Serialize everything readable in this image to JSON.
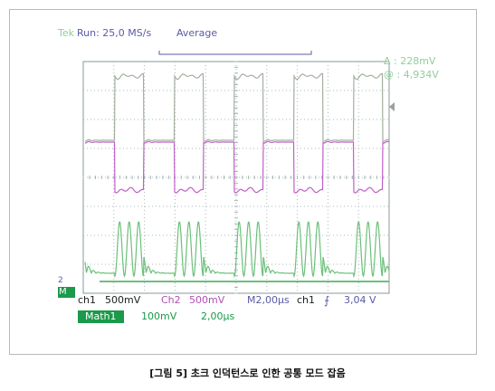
{
  "header": {
    "brand": "Tek",
    "run_status": "Run: 25,0 MS/s",
    "acquisition_mode": "Average"
  },
  "cursors": {
    "delta": "Δ : 228mV",
    "at": "@ : 4,934V"
  },
  "markers": {
    "math": "M",
    "ch2": "2"
  },
  "status_bar": {
    "ch1_label": "ch1",
    "ch1_scale": "500mV",
    "ch2_label": "Ch2",
    "ch2_scale": "500mV",
    "timebase": "M2,00μs",
    "trigger_source": "ch1",
    "trigger_slope_icon": "rising-edge-icon",
    "trigger_level": "3,04 V",
    "math_label": "Math1",
    "math_scale": "100mV",
    "math_timebase": "2,00μs"
  },
  "caption": "[그림 5] 초크 인덕턴스로 인한 공통 모드 잡음",
  "colors": {
    "ch1_trace": "#a4aea0",
    "ch2_trace": "#c060c8",
    "math_trace": "#6cc07a",
    "grid": "#a8b8b8",
    "math_badge": "#1a9a4a"
  }
}
